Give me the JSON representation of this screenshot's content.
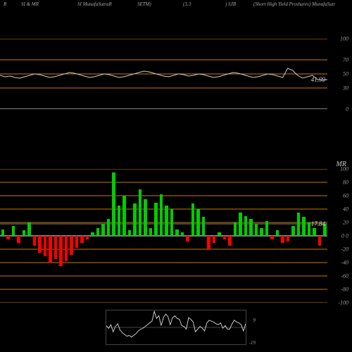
{
  "header": {
    "items": [
      "R",
      "SI & MR",
      "SI MunafaSutraR",
      "SETM)",
      "(3.3",
      ") SJB",
      "(Short High Yield Proshares) MunafaSutr"
    ]
  },
  "colors": {
    "background": "#000000",
    "grid_major": "#cc7a00",
    "grid_zero": "#ffffff",
    "line": "#cccccc",
    "bar_up": "#00cc00",
    "bar_down": "#ff0000",
    "text": "#999999",
    "current_marker": "#888888"
  },
  "panel1": {
    "type": "line",
    "ylim": [
      0,
      100
    ],
    "ticks": [
      0,
      30,
      50,
      70,
      100
    ],
    "grid_at": [
      30,
      50,
      70,
      100
    ],
    "zero_at": 0,
    "current": 41.99,
    "points": [
      48,
      46,
      47,
      45,
      44,
      46,
      48,
      50,
      49,
      47,
      45,
      46,
      48,
      50,
      52,
      51,
      49,
      47,
      45,
      46,
      48,
      50,
      49,
      47,
      45,
      46,
      48,
      50,
      52,
      54,
      53,
      51,
      49,
      47,
      46,
      48,
      50,
      49,
      47,
      48,
      50,
      49,
      47,
      45,
      46,
      48,
      50,
      52,
      51,
      49,
      47,
      45,
      46,
      48,
      50,
      49,
      47,
      45,
      58,
      55,
      48,
      44,
      46,
      48,
      42,
      41,
      42
    ]
  },
  "panel2": {
    "type": "bar",
    "ylim": [
      -100,
      100
    ],
    "ticks": [
      -100,
      -80,
      -60,
      -40,
      -20,
      0,
      20,
      40,
      60,
      80,
      100
    ],
    "grid_major_at": [
      -100,
      -80,
      -60,
      -40,
      -20,
      20,
      40,
      60,
      80,
      100
    ],
    "zero_at": 0,
    "current": 17.84,
    "axis_zero_label": "0  0",
    "values": [
      10,
      -5,
      15,
      -10,
      8,
      20,
      -15,
      -25,
      -30,
      -40,
      -35,
      -45,
      -38,
      -28,
      -18,
      -10,
      -5,
      5,
      12,
      18,
      25,
      95,
      45,
      60,
      8,
      48,
      70,
      55,
      12,
      50,
      62,
      45,
      40,
      10,
      5,
      -8,
      48,
      40,
      28,
      -20,
      -10,
      5,
      -5,
      -15,
      20,
      35,
      30,
      25,
      18,
      12,
      22,
      -5,
      8,
      -10,
      -8,
      15,
      35,
      28,
      20,
      12,
      -15,
      18
    ]
  },
  "panel3": {
    "type": "line",
    "ylim": [
      -19,
      19
    ],
    "ticks": [
      -19,
      9
    ],
    "points": [
      2,
      -1,
      3,
      -5,
      1,
      4,
      -3,
      -6,
      -8,
      -10,
      -9,
      -11,
      -9,
      -7,
      -4,
      -2,
      -1,
      1,
      3,
      5,
      7,
      18,
      10,
      13,
      2,
      11,
      15,
      12,
      3,
      11,
      13,
      10,
      9,
      2,
      1,
      -2,
      11,
      9,
      6,
      -5,
      -2,
      1,
      -1,
      -4,
      5,
      8,
      7,
      6,
      4,
      3,
      5,
      -1,
      2,
      -2,
      -2,
      4,
      8,
      6,
      5,
      3,
      -4,
      4
    ]
  },
  "mr_label": "MR"
}
